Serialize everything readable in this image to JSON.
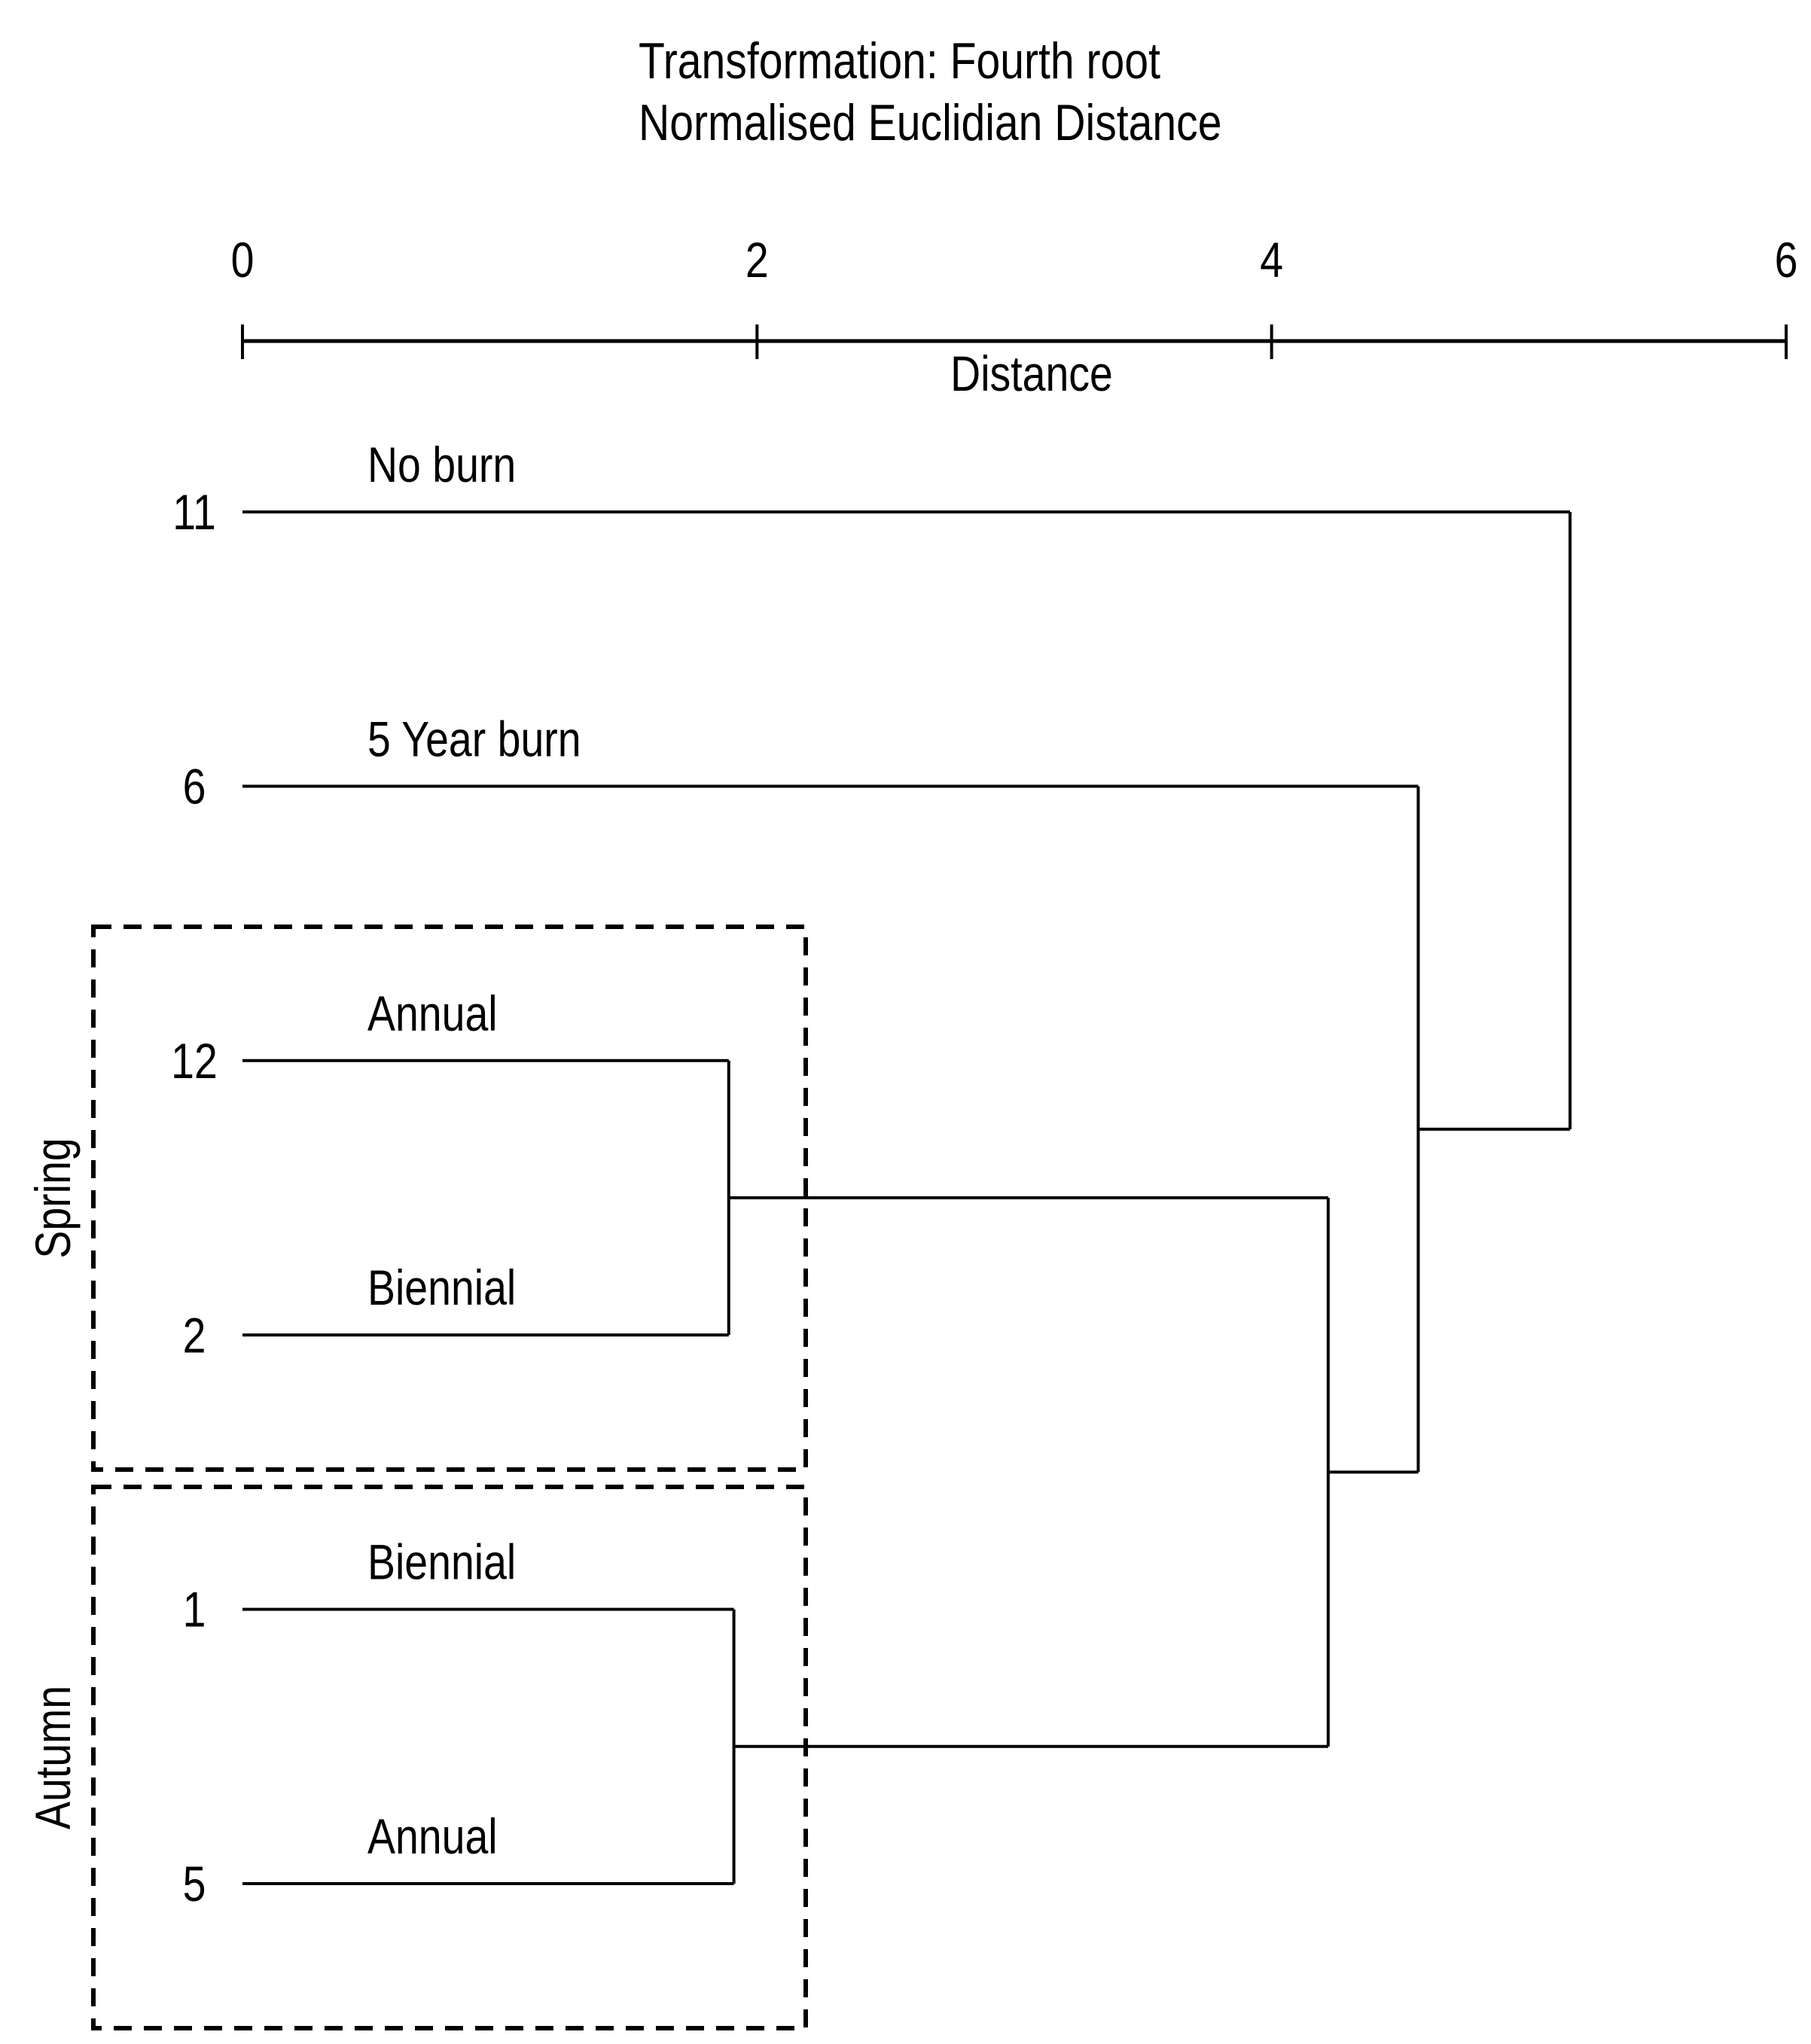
{
  "chart_data": {
    "type": "dendrogram",
    "orientation": "horizontal",
    "title": "Transformation: Fourth root",
    "subtitle": "Normalised Euclidian Distance",
    "axis": {
      "label": "Distance",
      "min": 0,
      "max": 6,
      "ticks": [
        0,
        2,
        4,
        6
      ]
    },
    "leaves": [
      {
        "id": "11",
        "treatment": "No burn",
        "group": ""
      },
      {
        "id": "6",
        "treatment": "5 Year burn",
        "group": ""
      },
      {
        "id": "12",
        "treatment": "Annual",
        "group": "Spring"
      },
      {
        "id": "2",
        "treatment": "Biennial",
        "group": "Spring"
      },
      {
        "id": "1",
        "treatment": "Biennial",
        "group": "Autumn"
      },
      {
        "id": "5",
        "treatment": "Annual",
        "group": "Autumn"
      }
    ],
    "merges": [
      {
        "left": "12",
        "right": "2",
        "distance": 1.89
      },
      {
        "left": "1",
        "right": "5",
        "distance": 1.91
      },
      {
        "left": "merge0",
        "right": "merge1",
        "distance": 4.22
      },
      {
        "left": "6",
        "right": "merge2",
        "distance": 4.57
      },
      {
        "left": "11",
        "right": "merge3",
        "distance": 5.16
      }
    ],
    "groups": [
      {
        "label": "Spring",
        "members": [
          "12",
          "2"
        ]
      },
      {
        "label": "Autumn",
        "members": [
          "1",
          "5"
        ]
      }
    ],
    "colors": {
      "line": "#000000",
      "background": "#ffffff"
    }
  }
}
